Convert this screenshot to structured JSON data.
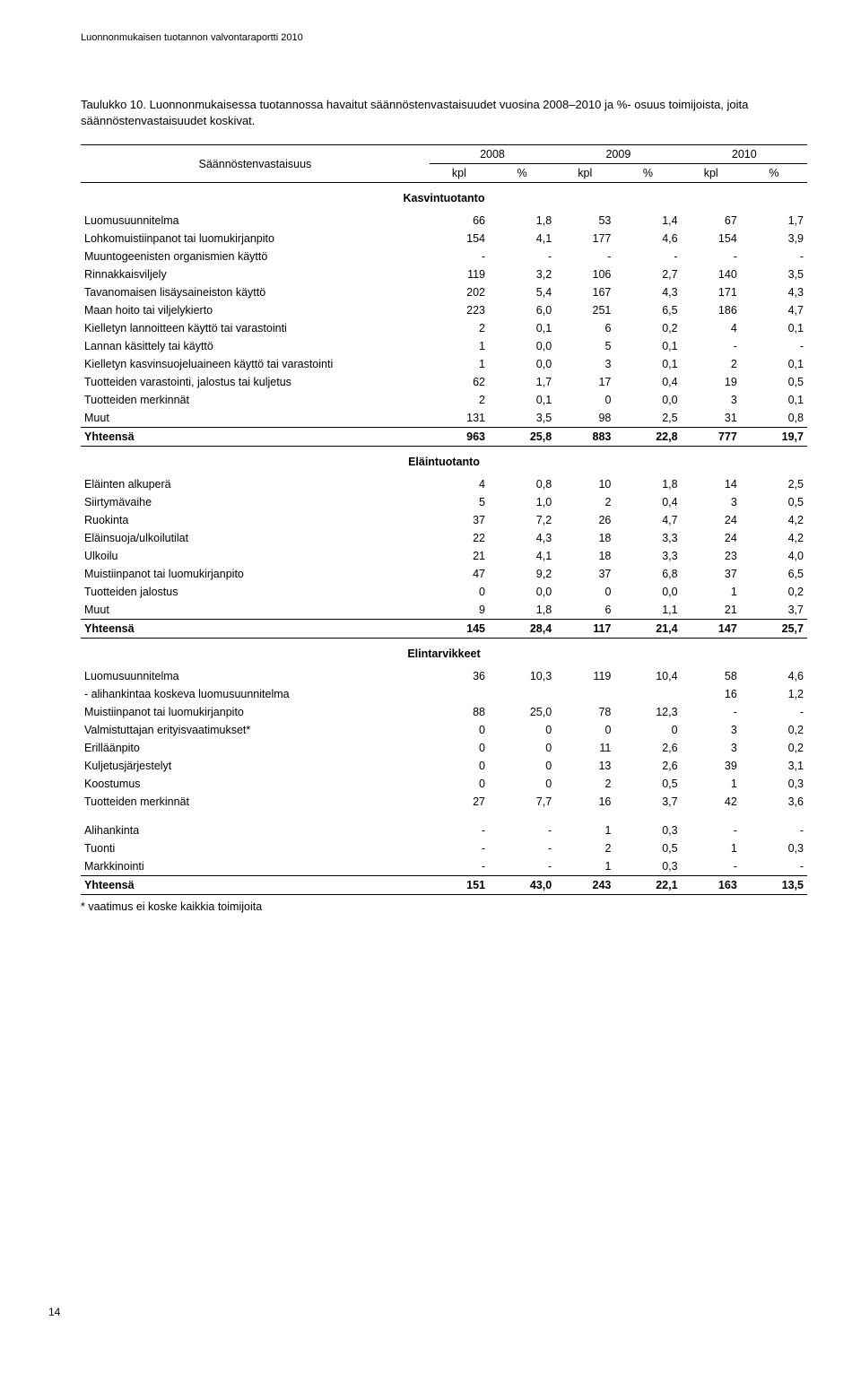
{
  "running_header": "Luonnonmukaisen tuotannon valvontaraportti 2010",
  "caption": "Taulukko 10. Luonnonmukaisessa tuotannossa havaitut säännöstenvastaisuudet vuosina 2008–2010 ja %- osuus toimijoista, joita säännöstenvastaisuudet koskivat.",
  "row_header_label": "Säännöstenvastaisuus",
  "years": [
    "2008",
    "2009",
    "2010"
  ],
  "unit_labels": [
    "kpl",
    "%"
  ],
  "sections": [
    {
      "title": "Kasvintuotanto",
      "rows": [
        [
          "Luomusuunnitelma",
          "66",
          "1,8",
          "53",
          "1,4",
          "67",
          "1,7"
        ],
        [
          "Lohkomuistiinpanot tai luomukirjanpito",
          "154",
          "4,1",
          "177",
          "4,6",
          "154",
          "3,9"
        ],
        [
          "Muuntogeenisten organismien käyttö",
          "-",
          "-",
          "-",
          "-",
          "-",
          "-"
        ],
        [
          "Rinnakkaisviljely",
          "119",
          "3,2",
          "106",
          "2,7",
          "140",
          "3,5"
        ],
        [
          "Tavanomaisen lisäysaineiston käyttö",
          "202",
          "5,4",
          "167",
          "4,3",
          "171",
          "4,3"
        ],
        [
          "Maan hoito tai viljelykierto",
          "223",
          "6,0",
          "251",
          "6,5",
          "186",
          "4,7"
        ],
        [
          "Kielletyn lannoitteen käyttö tai varastointi",
          "2",
          "0,1",
          "6",
          "0,2",
          "4",
          "0,1"
        ],
        [
          "Lannan käsittely tai käyttö",
          "1",
          "0,0",
          "5",
          "0,1",
          "-",
          "-"
        ],
        [
          "Kielletyn kasvinsuojeluaineen käyttö tai varastointi",
          "1",
          "0,0",
          "3",
          "0,1",
          "2",
          "0,1"
        ],
        [
          "Tuotteiden varastointi, jalostus tai kuljetus",
          "62",
          "1,7",
          "17",
          "0,4",
          "19",
          "0,5"
        ],
        [
          "Tuotteiden merkinnät",
          "2",
          "0,1",
          "0",
          "0,0",
          "3",
          "0,1"
        ],
        [
          "Muut",
          "131",
          "3,5",
          "98",
          "2,5",
          "31",
          "0,8"
        ]
      ],
      "sum": [
        "Yhteensä",
        "963",
        "25,8",
        "883",
        "22,8",
        "777",
        "19,7"
      ]
    },
    {
      "title": "Eläintuotanto",
      "rows": [
        [
          "Eläinten alkuperä",
          "4",
          "0,8",
          "10",
          "1,8",
          "14",
          "2,5"
        ],
        [
          "Siirtymävaihe",
          "5",
          "1,0",
          "2",
          "0,4",
          "3",
          "0,5"
        ],
        [
          "Ruokinta",
          "37",
          "7,2",
          "26",
          "4,7",
          "24",
          "4,2"
        ],
        [
          "Eläinsuoja/ulkoilutilat",
          "22",
          "4,3",
          "18",
          "3,3",
          "24",
          "4,2"
        ],
        [
          "Ulkoilu",
          "21",
          "4,1",
          "18",
          "3,3",
          "23",
          "4,0"
        ],
        [
          "Muistiinpanot tai luomukirjanpito",
          "47",
          "9,2",
          "37",
          "6,8",
          "37",
          "6,5"
        ],
        [
          "Tuotteiden jalostus",
          "0",
          "0,0",
          "0",
          "0,0",
          "1",
          "0,2"
        ],
        [
          "Muut",
          "9",
          "1,8",
          "6",
          "1,1",
          "21",
          "3,7"
        ]
      ],
      "sum": [
        "Yhteensä",
        "145",
        "28,4",
        "117",
        "21,4",
        "147",
        "25,7"
      ]
    },
    {
      "title": "Elintarvikkeet",
      "rows": [
        [
          "Luomusuunnitelma",
          "36",
          "10,3",
          "119",
          "10,4",
          "58",
          "4,6"
        ],
        [
          "- alihankintaa koskeva luomusuunnitelma",
          "",
          "",
          "",
          "",
          "16",
          "1,2"
        ],
        [
          "Muistiinpanot tai luomukirjanpito",
          "88",
          "25,0",
          "78",
          "12,3",
          "-",
          "-"
        ],
        [
          "Valmistuttajan erityisvaatimukset*",
          "0",
          "0",
          "0",
          "0",
          "3",
          "0,2"
        ],
        [
          "Erilläänpito",
          "0",
          "0",
          "11",
          "2,6",
          "3",
          "0,2"
        ],
        [
          "Kuljetusjärjestelyt",
          "0",
          "0",
          "13",
          "2,6",
          "39",
          "3,1"
        ],
        [
          "Koostumus",
          "0",
          "0",
          "2",
          "0,5",
          "1",
          "0,3"
        ],
        [
          "Tuotteiden merkinnät",
          "27",
          "7,7",
          "16",
          "3,7",
          "42",
          "3,6"
        ],
        [
          "Alihankinta",
          "-",
          "-",
          "1",
          "0,3",
          "-",
          "-"
        ],
        [
          "Tuonti",
          "-",
          "-",
          "2",
          "0,5",
          "1",
          "0,3"
        ],
        [
          "Markkinointi",
          "-",
          "-",
          "1",
          "0,3",
          "-",
          "-"
        ]
      ],
      "sum": [
        "Yhteensä",
        "151",
        "43,0",
        "243",
        "22,1",
        "163",
        "13,5"
      ],
      "loose_after": [
        7
      ]
    }
  ],
  "footnote": "* vaatimus ei koske kaikkia toimijoita",
  "page_number": "14"
}
